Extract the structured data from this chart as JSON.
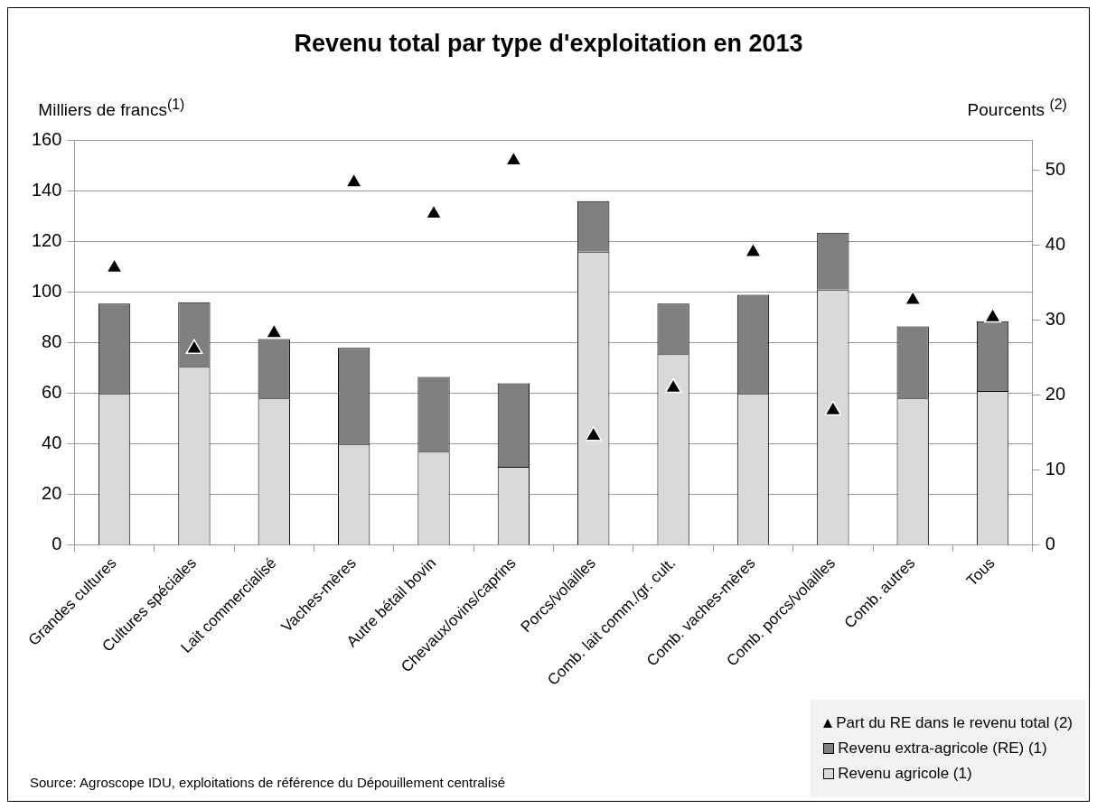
{
  "chart_data": {
    "type": "bar",
    "title": "Revenu total par type d'exploitation en 2013",
    "ylabel": "Milliers de francs$^{(1)}$",
    "y2label": "Pourcents $^{(2)}$",
    "categories": [
      "Grandes cultures",
      "Cultures spéciales",
      "Lait commercialisé",
      "Vaches-mères",
      "Autre bétail bovin",
      "Chevaux/ovins/caprins",
      "Porcs/volailles",
      "Comb. lait comm./gr. cult.",
      "Comb. vaches-mères",
      "Comb. porcs/volailles",
      "Comb. autres",
      "Tous"
    ],
    "series": [
      {
        "name": "Revenu agricole (1)",
        "color": "#d9d9d9",
        "values": [
          60,
          70.5,
          58,
          40,
          37,
          31,
          116,
          75.5,
          60,
          101,
          58,
          61
        ]
      },
      {
        "name": "Revenu extra-agricole (RE) (1)",
        "color": "#808080",
        "values": [
          35.5,
          25.5,
          23.5,
          38,
          29.5,
          33,
          20,
          20,
          39,
          22.5,
          28.5,
          27.5
        ]
      },
      {
        "name": "Part du RE dans le revenu total (2)",
        "type": "scatter",
        "axis": "y2",
        "color": "#000000",
        "values": [
          37,
          26.2,
          28.3,
          48.4,
          44.2,
          51.3,
          14.6,
          21,
          39.1,
          18,
          32.7,
          30.4
        ]
      }
    ],
    "stacked": true,
    "ylim": [
      0,
      160
    ],
    "yticks": [
      0,
      20,
      40,
      60,
      80,
      100,
      120,
      140,
      160
    ],
    "y2lim": [
      0,
      54
    ],
    "y2ticks": [
      0,
      10,
      20,
      30,
      40,
      50
    ],
    "grid": "y",
    "legend": "bottom right",
    "marker": "triangle",
    "annotations": [
      "Source: Agroscope IDU, exploitations de référence du Dépouillement centralisé"
    ]
  }
}
